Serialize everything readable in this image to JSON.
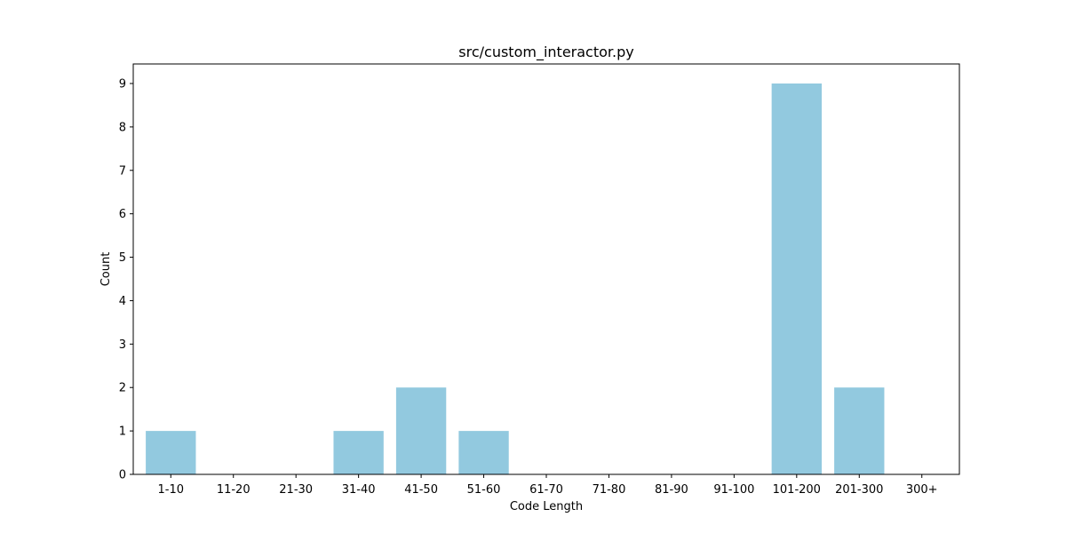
{
  "chart_data": {
    "type": "bar",
    "title": "src/custom_interactor.py",
    "xlabel": "Code Length",
    "ylabel": "Count",
    "categories": [
      "1-10",
      "11-20",
      "21-30",
      "31-40",
      "41-50",
      "51-60",
      "61-70",
      "71-80",
      "81-90",
      "91-100",
      "101-200",
      "201-300",
      "300+"
    ],
    "values": [
      1,
      0,
      0,
      1,
      2,
      1,
      0,
      0,
      0,
      0,
      9,
      2,
      0
    ],
    "yticks": [
      0,
      1,
      2,
      3,
      4,
      5,
      6,
      7,
      8,
      9
    ],
    "ylim": [
      0,
      9.45
    ],
    "bar_color": "#92c9df",
    "grid": false,
    "legend": "none"
  }
}
